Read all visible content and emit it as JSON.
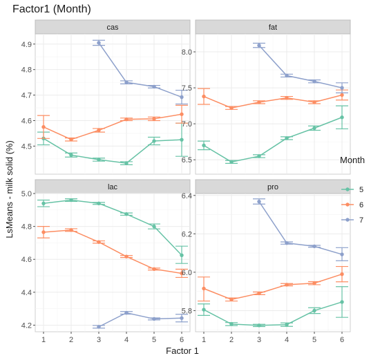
{
  "chart_data": {
    "type": "line",
    "title": "Factor1 (Month)",
    "xlabel": "Factor 1",
    "ylabel": "LsMeans - milk solid (%)",
    "grid": true,
    "legend": {
      "title": "Month",
      "placement": "right",
      "entries": [
        {
          "name": "5",
          "color": "#66c2a5"
        },
        {
          "name": "6",
          "color": "#fc8d62"
        },
        {
          "name": "7",
          "color": "#8da0cb"
        }
      ]
    },
    "x_ticks": [
      "1",
      "2",
      "3",
      "4",
      "5",
      "6"
    ],
    "panels": [
      {
        "name": "cas",
        "ylim": [
          4.39,
          4.94
        ],
        "y_ticks": [
          "4.5",
          "4.6",
          "4.7",
          "4.8",
          "4.9"
        ],
        "series": [
          {
            "name": "5",
            "points": [
              {
                "x": 1,
                "y": 4.53,
                "lo": 4.505,
                "hi": 4.555
              },
              {
                "x": 2,
                "y": 4.465,
                "lo": 4.457,
                "hi": 4.473
              },
              {
                "x": 3,
                "y": 4.447,
                "lo": 4.441,
                "hi": 4.453
              },
              {
                "x": 4,
                "y": 4.433,
                "lo": 4.427,
                "hi": 4.439
              },
              {
                "x": 5,
                "y": 4.52,
                "lo": 4.505,
                "hi": 4.535
              },
              {
                "x": 6,
                "y": 4.525,
                "lo": 4.46,
                "hi": 4.59
              }
            ]
          },
          {
            "name": "6",
            "points": [
              {
                "x": 1,
                "y": 4.575,
                "lo": 4.53,
                "hi": 4.62
              },
              {
                "x": 2,
                "y": 4.526,
                "lo": 4.52,
                "hi": 4.532
              },
              {
                "x": 3,
                "y": 4.562,
                "lo": 4.555,
                "hi": 4.569
              },
              {
                "x": 4,
                "y": 4.605,
                "lo": 4.6,
                "hi": 4.61
              },
              {
                "x": 5,
                "y": 4.607,
                "lo": 4.6,
                "hi": 4.614
              },
              {
                "x": 6,
                "y": 4.625,
                "lo": 4.59,
                "hi": 4.66
              }
            ]
          },
          {
            "name": "7",
            "points": [
              {
                "x": 3,
                "y": 4.905,
                "lo": 4.895,
                "hi": 4.915
              },
              {
                "x": 4,
                "y": 4.75,
                "lo": 4.744,
                "hi": 4.756
              },
              {
                "x": 5,
                "y": 4.733,
                "lo": 4.728,
                "hi": 4.738
              },
              {
                "x": 6,
                "y": 4.692,
                "lo": 4.665,
                "hi": 4.719
              }
            ]
          }
        ]
      },
      {
        "name": "fat",
        "ylim": [
          6.3,
          8.25
        ],
        "y_ticks": [
          "6.5",
          "7.0",
          "7.5",
          "8.0"
        ],
        "series": [
          {
            "name": "5",
            "points": [
              {
                "x": 1,
                "y": 6.7,
                "lo": 6.64,
                "hi": 6.76
              },
              {
                "x": 2,
                "y": 6.47,
                "lo": 6.45,
                "hi": 6.49
              },
              {
                "x": 3,
                "y": 6.55,
                "lo": 6.53,
                "hi": 6.57
              },
              {
                "x": 4,
                "y": 6.8,
                "lo": 6.78,
                "hi": 6.82
              },
              {
                "x": 5,
                "y": 6.94,
                "lo": 6.91,
                "hi": 6.97
              },
              {
                "x": 6,
                "y": 7.09,
                "lo": 6.93,
                "hi": 7.25
              }
            ]
          },
          {
            "name": "6",
            "points": [
              {
                "x": 1,
                "y": 7.38,
                "lo": 7.27,
                "hi": 7.49
              },
              {
                "x": 2,
                "y": 7.22,
                "lo": 7.2,
                "hi": 7.24
              },
              {
                "x": 3,
                "y": 7.3,
                "lo": 7.28,
                "hi": 7.32
              },
              {
                "x": 4,
                "y": 7.36,
                "lo": 7.34,
                "hi": 7.38
              },
              {
                "x": 5,
                "y": 7.3,
                "lo": 7.28,
                "hi": 7.32
              },
              {
                "x": 6,
                "y": 7.4,
                "lo": 7.33,
                "hi": 7.47
              }
            ]
          },
          {
            "name": "7",
            "points": [
              {
                "x": 3,
                "y": 8.09,
                "lo": 8.06,
                "hi": 8.12
              },
              {
                "x": 4,
                "y": 7.67,
                "lo": 7.65,
                "hi": 7.69
              },
              {
                "x": 5,
                "y": 7.59,
                "lo": 7.57,
                "hi": 7.61
              },
              {
                "x": 6,
                "y": 7.5,
                "lo": 7.43,
                "hi": 7.57
              }
            ]
          }
        ]
      },
      {
        "name": "lac",
        "ylim": [
          4.16,
          5.0
        ],
        "y_ticks": [
          "4.2",
          "4.4",
          "4.6",
          "4.8",
          "5.0"
        ],
        "series": [
          {
            "name": "5",
            "points": [
              {
                "x": 1,
                "y": 4.94,
                "lo": 4.92,
                "hi": 4.96
              },
              {
                "x": 2,
                "y": 4.96,
                "lo": 4.952,
                "hi": 4.968
              },
              {
                "x": 3,
                "y": 4.94,
                "lo": 4.934,
                "hi": 4.946
              },
              {
                "x": 4,
                "y": 4.875,
                "lo": 4.868,
                "hi": 4.882
              },
              {
                "x": 5,
                "y": 4.8,
                "lo": 4.785,
                "hi": 4.815
              },
              {
                "x": 6,
                "y": 4.625,
                "lo": 4.575,
                "hi": 4.68
              }
            ]
          },
          {
            "name": "6",
            "points": [
              {
                "x": 1,
                "y": 4.765,
                "lo": 4.73,
                "hi": 4.8
              },
              {
                "x": 2,
                "y": 4.778,
                "lo": 4.77,
                "hi": 4.786
              },
              {
                "x": 3,
                "y": 4.705,
                "lo": 4.698,
                "hi": 4.712
              },
              {
                "x": 4,
                "y": 4.617,
                "lo": 4.611,
                "hi": 4.623
              },
              {
                "x": 5,
                "y": 4.541,
                "lo": 4.535,
                "hi": 4.547
              },
              {
                "x": 6,
                "y": 4.515,
                "lo": 4.49,
                "hi": 4.54
              }
            ]
          },
          {
            "name": "7",
            "points": [
              {
                "x": 3,
                "y": 4.19,
                "lo": 4.182,
                "hi": 4.198
              },
              {
                "x": 4,
                "y": 4.275,
                "lo": 4.267,
                "hi": 4.283
              },
              {
                "x": 5,
                "y": 4.238,
                "lo": 4.232,
                "hi": 4.244
              },
              {
                "x": 6,
                "y": 4.243,
                "lo": 4.22,
                "hi": 4.266
              }
            ]
          }
        ]
      },
      {
        "name": "pro",
        "ylim": [
          5.69,
          6.41
        ],
        "y_ticks": [
          "5.8",
          "6.0",
          "6.2",
          "6.4"
        ],
        "series": [
          {
            "name": "5",
            "points": [
              {
                "x": 1,
                "y": 5.805,
                "lo": 5.775,
                "hi": 5.835
              },
              {
                "x": 2,
                "y": 5.73,
                "lo": 5.722,
                "hi": 5.738
              },
              {
                "x": 3,
                "y": 5.723,
                "lo": 5.717,
                "hi": 5.729
              },
              {
                "x": 4,
                "y": 5.727,
                "lo": 5.718,
                "hi": 5.736
              },
              {
                "x": 5,
                "y": 5.8,
                "lo": 5.785,
                "hi": 5.815
              },
              {
                "x": 6,
                "y": 5.845,
                "lo": 5.765,
                "hi": 5.925
              }
            ]
          },
          {
            "name": "6",
            "points": [
              {
                "x": 1,
                "y": 5.915,
                "lo": 5.85,
                "hi": 5.975
              },
              {
                "x": 2,
                "y": 5.858,
                "lo": 5.85,
                "hi": 5.866
              },
              {
                "x": 3,
                "y": 5.89,
                "lo": 5.883,
                "hi": 5.897
              },
              {
                "x": 4,
                "y": 5.935,
                "lo": 5.929,
                "hi": 5.941
              },
              {
                "x": 5,
                "y": 5.943,
                "lo": 5.935,
                "hi": 5.951
              },
              {
                "x": 6,
                "y": 5.99,
                "lo": 5.95,
                "hi": 6.03
              }
            ]
          },
          {
            "name": "7",
            "points": [
              {
                "x": 3,
                "y": 6.368,
                "lo": 6.355,
                "hi": 6.382
              },
              {
                "x": 4,
                "y": 6.152,
                "lo": 6.146,
                "hi": 6.158
              },
              {
                "x": 5,
                "y": 6.135,
                "lo": 6.13,
                "hi": 6.14
              },
              {
                "x": 6,
                "y": 6.093,
                "lo": 6.06,
                "hi": 6.128
              }
            ]
          }
        ]
      }
    ]
  }
}
